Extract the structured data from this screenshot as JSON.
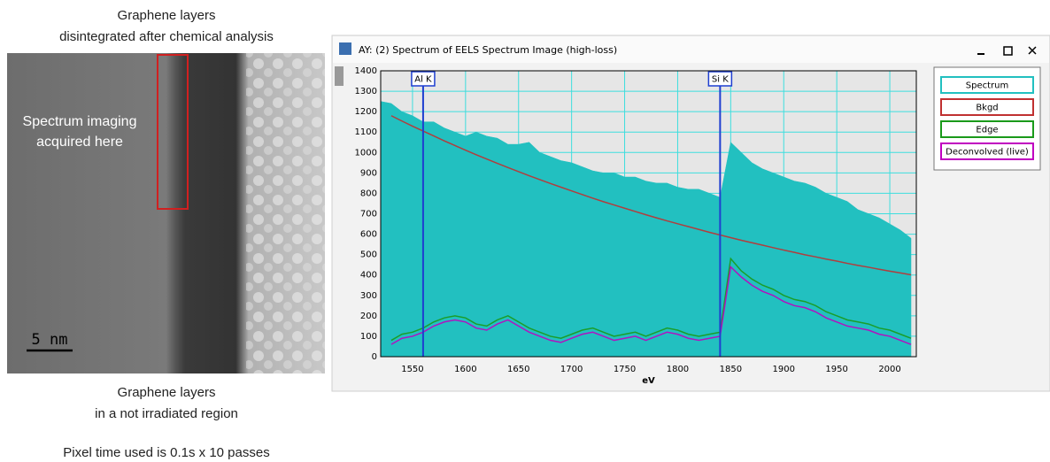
{
  "image_panel": {
    "caption_top": [
      "Graphene layers",
      "disintegrated after chemical analysis"
    ],
    "overlay_text": [
      "Spectrum imaging",
      "acquired here"
    ],
    "scale_bar": "5 nm",
    "caption_bottom": [
      "Graphene layers",
      "in a not irradiated region"
    ],
    "note": "Pixel time used is 0.1s x 10 passes"
  },
  "window": {
    "title": "AY: (2) Spectrum of EELS Spectrum Image (high-loss)"
  },
  "chart_data": {
    "type": "area-line",
    "x_label": "eV",
    "x": [
      1520,
      1530,
      1540,
      1550,
      1560,
      1570,
      1580,
      1590,
      1600,
      1610,
      1620,
      1630,
      1640,
      1650,
      1660,
      1670,
      1680,
      1690,
      1700,
      1710,
      1720,
      1730,
      1740,
      1750,
      1760,
      1770,
      1780,
      1790,
      1800,
      1810,
      1820,
      1830,
      1840,
      1850,
      1860,
      1870,
      1880,
      1890,
      1900,
      1910,
      1920,
      1930,
      1940,
      1950,
      1960,
      1970,
      1980,
      1990,
      2000,
      2010,
      2020
    ],
    "series": [
      {
        "name": "Spectrum",
        "color": "#22c0c0",
        "fill": true,
        "values": [
          1250,
          1240,
          1200,
          1180,
          1150,
          1150,
          1120,
          1100,
          1080,
          1100,
          1080,
          1070,
          1040,
          1040,
          1050,
          1000,
          980,
          960,
          950,
          930,
          910,
          900,
          900,
          880,
          880,
          860,
          850,
          850,
          830,
          820,
          820,
          800,
          780,
          1050,
          1000,
          950,
          920,
          900,
          880,
          860,
          850,
          830,
          800,
          780,
          760,
          720,
          700,
          680,
          650,
          620,
          580
        ]
      },
      {
        "name": "Bkgd",
        "color": "#c03030",
        "fill": false,
        "values": [
          null,
          1180,
          1154,
          1129,
          1105,
          1081,
          1057,
          1034,
          1011,
          989,
          968,
          947,
          926,
          906,
          886,
          867,
          848,
          830,
          812,
          794,
          776,
          759,
          743,
          727,
          711,
          695,
          680,
          665,
          651,
          637,
          623,
          609,
          596,
          583,
          570,
          558,
          546,
          534,
          522,
          511,
          499,
          489,
          478,
          468,
          457,
          447,
          438,
          428,
          419,
          410,
          401
        ]
      },
      {
        "name": "Edge",
        "color": "#1a9a1a",
        "fill": false,
        "values": [
          null,
          80,
          110,
          120,
          140,
          170,
          190,
          200,
          190,
          160,
          150,
          180,
          200,
          170,
          140,
          120,
          100,
          90,
          110,
          130,
          140,
          120,
          100,
          110,
          120,
          100,
          120,
          140,
          130,
          110,
          100,
          110,
          120,
          480,
          420,
          380,
          350,
          330,
          300,
          280,
          270,
          250,
          220,
          200,
          180,
          170,
          160,
          140,
          130,
          110,
          90
        ]
      },
      {
        "name": "Deconvolved (live)",
        "color": "#c000c0",
        "fill": false,
        "values": [
          null,
          60,
          90,
          100,
          120,
          150,
          170,
          180,
          170,
          140,
          130,
          160,
          180,
          150,
          120,
          100,
          80,
          70,
          90,
          110,
          120,
          100,
          80,
          90,
          100,
          80,
          100,
          120,
          110,
          90,
          80,
          90,
          100,
          440,
          390,
          350,
          320,
          300,
          270,
          250,
          240,
          220,
          190,
          170,
          150,
          140,
          130,
          110,
          100,
          80,
          60
        ]
      }
    ],
    "markers": [
      {
        "label": "Al K",
        "x": 1560
      },
      {
        "label": "Si K",
        "x": 1840
      }
    ],
    "xlim": [
      1520,
      2025
    ],
    "xticks": [
      1550,
      1600,
      1650,
      1700,
      1750,
      1800,
      1850,
      1900,
      1950,
      2000
    ],
    "ylim": [
      0,
      1400
    ],
    "yticks": [
      0,
      100,
      200,
      300,
      400,
      500,
      600,
      700,
      800,
      900,
      1000,
      1100,
      1200,
      1300,
      1400
    ],
    "grid": true,
    "grid_color": "#3ddede",
    "legend": "right"
  }
}
